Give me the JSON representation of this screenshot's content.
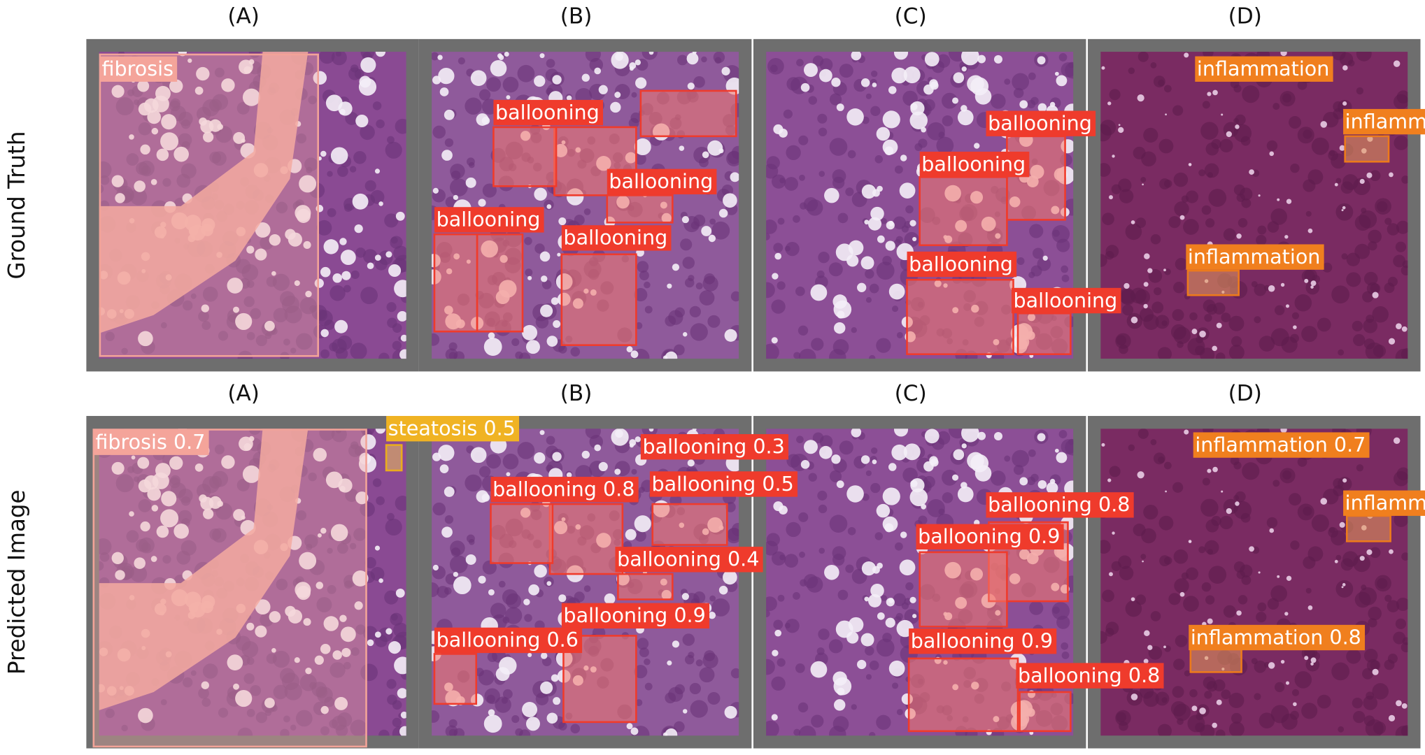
{
  "rows": [
    {
      "label": "Ground Truth",
      "panels": [
        {
          "title": "(A)",
          "detections": [
            "fibrosis"
          ]
        },
        {
          "title": "(B)",
          "detections": [
            "ballooning",
            "ballooning",
            "ballooning",
            "ballooning"
          ]
        },
        {
          "title": "(C)",
          "detections": [
            "ballooning",
            "ballooning",
            "ballooning",
            "ballooning"
          ]
        },
        {
          "title": "(D)",
          "detections": [
            "inflammation",
            "inflamm",
            "inflammation"
          ]
        }
      ]
    },
    {
      "label": "Predicted Image",
      "panels": [
        {
          "title": "(A)",
          "detections": [
            "fibrosis 0.7",
            "steatosis 0.5"
          ]
        },
        {
          "title": "(B)",
          "detections": [
            "ballooning 0.8",
            "ballooning 0.3",
            "ballooning 0.5",
            "ballooning 0.4",
            "ballooning 0.9",
            "ballooning 0.6"
          ]
        },
        {
          "title": "(C)",
          "detections": [
            "ballooning 0.8",
            "ballooning 0.9",
            "ballooning 0.9",
            "ballooning 0.8"
          ]
        },
        {
          "title": "(D)",
          "detections": [
            "inflammation 0.7",
            "inflamm",
            "inflammation 0.8"
          ]
        }
      ]
    }
  ]
}
